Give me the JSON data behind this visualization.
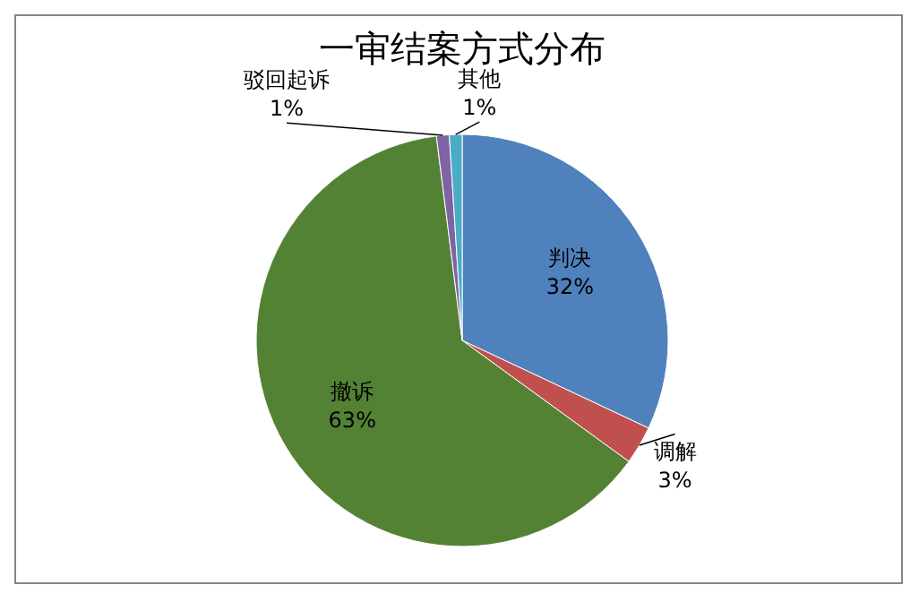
{
  "chart_data": {
    "type": "pie",
    "title": "一审结案方式分布",
    "categories": [
      "判决",
      "调解",
      "撤诉",
      "驳回起诉",
      "其他"
    ],
    "values": [
      32,
      3,
      63,
      1,
      1
    ],
    "value_labels": [
      "32%",
      "3%",
      "63%",
      "1%",
      "1%"
    ],
    "colors": [
      "#4f81bd",
      "#c0504d",
      "#548235",
      "#8064a2",
      "#4bacc6"
    ]
  }
}
